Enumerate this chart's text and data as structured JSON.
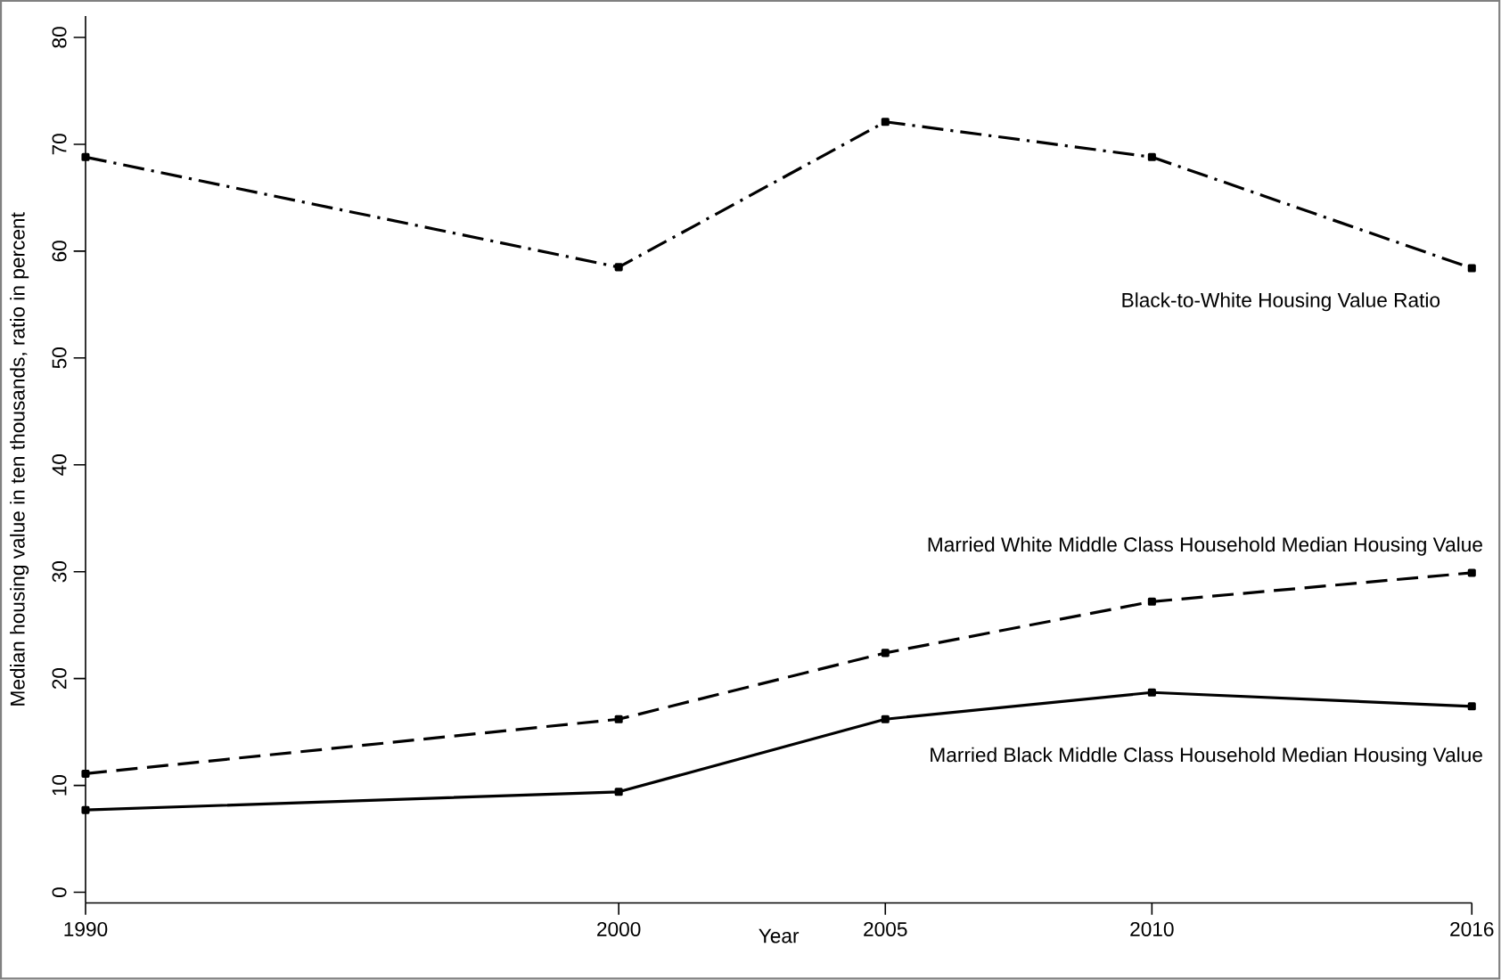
{
  "chart_data": {
    "type": "line",
    "xlabel": "Year",
    "ylabel": "Median housing value in ten thousands, ratio in percent",
    "x": [
      1990,
      2000,
      2005,
      2010,
      2016
    ],
    "series": [
      {
        "name": "Black-to-White Housing Value Ratio",
        "color": "#000000",
        "line_style": "dashdot",
        "values": [
          68.8,
          58.5,
          72.1,
          68.8,
          58.4
        ]
      },
      {
        "name": "Married White Middle Class Household Median Housing Value",
        "color": "#000000",
        "line_style": "dashed",
        "values": [
          11.1,
          16.2,
          22.4,
          27.2,
          29.9
        ]
      },
      {
        "name": "Married Black Middle Class Household Median Housing Value",
        "color": "#000000",
        "line_style": "solid",
        "values": [
          7.7,
          9.4,
          16.2,
          18.7,
          17.4
        ]
      }
    ],
    "xlim": [
      1990,
      2016
    ],
    "xticks": [
      1990,
      2000,
      2005,
      2010,
      2016
    ],
    "ylim": [
      -1,
      82
    ],
    "yticks": [
      0,
      10,
      20,
      30,
      40,
      50,
      60,
      70,
      80
    ],
    "marker": "square",
    "grid": false,
    "legend": false
  }
}
